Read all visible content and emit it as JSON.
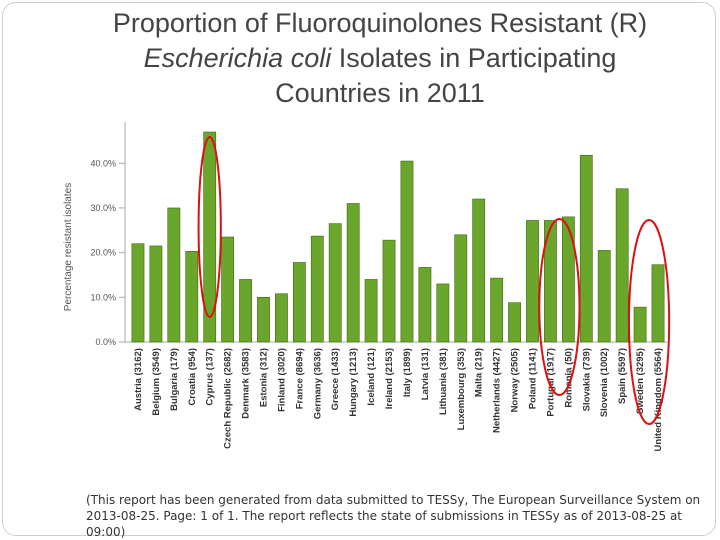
{
  "title": {
    "line1": "Proportion of Fluoroquinolones Resistant (R)",
    "line2_italic": "Escherichia coli",
    "line2_rest": " Isolates in Participating",
    "line3": "Countries in 2011"
  },
  "footnote": "(This report has been generated from data submitted to TESSy, The European Surveillance System on 2013-08-25. Page: 1 of 1. The report reflects the state of submissions in TESSy as of 2013-08-25 at 09:00)",
  "chart_data": {
    "type": "bar",
    "ylabel": "Percentage resistant isolates",
    "xlabel": "",
    "ylim": [
      0,
      47
    ],
    "yticks": [
      0,
      10,
      20,
      30,
      40
    ],
    "ytick_labels": [
      "0.0%",
      "10.0%",
      "20.0%",
      "30.0%",
      "40.0%"
    ],
    "categories": [
      "Austria (3162)",
      "Belgium (3549)",
      "Bulgaria (179)",
      "Croatia (954)",
      "Cyprus (137)",
      "Czech Republic (2682)",
      "Denmark (3583)",
      "Estonia (312)",
      "Finland (3020)",
      "France (8694)",
      "Germany (3636)",
      "Greece (1433)",
      "Hungary (1213)",
      "Iceland (121)",
      "Ireland (2153)",
      "Italy (1899)",
      "Latvia (131)",
      "Lithuania (381)",
      "Luxembourg (353)",
      "Malta (219)",
      "Netherlands (4427)",
      "Norway (2505)",
      "Poland (1141)",
      "Portugal (1917)",
      "Romania (50)",
      "Slovakia (739)",
      "Slovenia (1002)",
      "Spain (5597)",
      "Sweden (3295)",
      "United Kingdom (5564)"
    ],
    "values": [
      22,
      21.5,
      30,
      20.3,
      47,
      23.5,
      14,
      10,
      10.8,
      17.8,
      23.7,
      26.5,
      31,
      14,
      22.8,
      40.5,
      16.7,
      13,
      24,
      32,
      14.3,
      8.8,
      27.2,
      27.2,
      28,
      41.8,
      20.5,
      34.3,
      7.8,
      17.3
    ],
    "bar_color": "#6aa52c",
    "bar_stroke": "#3f6a12",
    "highlight_color": "#dd1111",
    "grid": false,
    "legend": "none"
  }
}
